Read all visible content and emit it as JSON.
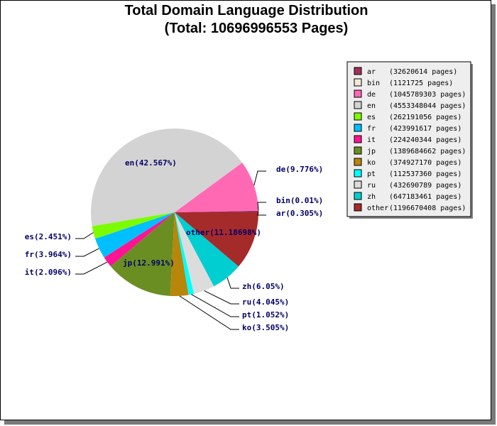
{
  "chart_data": {
    "type": "pie",
    "title": "Total Domain Language Distribution",
    "subtitle": "(Total: 10696996553 Pages)",
    "slices": [
      {
        "key": "ar",
        "pages": "32620614",
        "label": "ar(0.305%)",
        "value": 0.305,
        "color": "#a0305e"
      },
      {
        "key": "bin",
        "pages": "1121725",
        "label": "bin(0.01%)",
        "value": 0.01,
        "color": "#f5ead8"
      },
      {
        "key": "de",
        "pages": "1045789303",
        "label": "de(9.776%)",
        "value": 9.776,
        "color": "#ff69b4"
      },
      {
        "key": "en",
        "pages": "4553348044",
        "label": "en(42.567%)",
        "value": 42.567,
        "color": "#d3d3d3"
      },
      {
        "key": "es",
        "pages": "262191056",
        "label": "es(2.451%)",
        "value": 2.451,
        "color": "#7cfc00"
      },
      {
        "key": "fr",
        "pages": "423991617",
        "label": "fr(3.964%)",
        "value": 3.964,
        "color": "#00bfff"
      },
      {
        "key": "it",
        "pages": "224240344",
        "label": "it(2.096%)",
        "value": 2.096,
        "color": "#ff1493"
      },
      {
        "key": "jp",
        "pages": "1389684662",
        "label": "jp(12.991%)",
        "value": 12.991,
        "color": "#6b8e23"
      },
      {
        "key": "ko",
        "pages": "374927170",
        "label": "ko(3.505%)",
        "value": 3.505,
        "color": "#b8860b"
      },
      {
        "key": "pt",
        "pages": "112537360",
        "label": "pt(1.052%)",
        "value": 1.052,
        "color": "#00ffff"
      },
      {
        "key": "ru",
        "pages": "432690789",
        "label": "ru(4.045%)",
        "value": 4.045,
        "color": "#dcdcdc"
      },
      {
        "key": "zh",
        "pages": "647183461",
        "label": "zh(6.05%)",
        "value": 6.05,
        "color": "#00ced1"
      },
      {
        "key": "other",
        "pages": "1196670408",
        "label": "other(11.18698%)",
        "value": 11.18698,
        "color": "#a52a2a"
      }
    ]
  }
}
